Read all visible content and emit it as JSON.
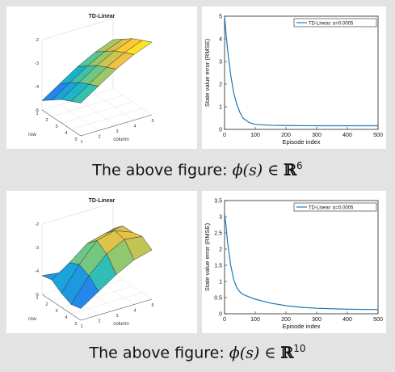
{
  "chart_data": [
    {
      "type": "surface",
      "title": "TD-Linear",
      "xlabel": "column",
      "ylabel": "row",
      "x_ticks": [
        "1",
        "2",
        "3",
        "4",
        "5"
      ],
      "y_ticks": [
        "1",
        "2",
        "3",
        "4",
        "5"
      ],
      "z_ticks": [
        "-2",
        "-3",
        "-4",
        "-5"
      ],
      "zlim": [
        -5,
        -2
      ],
      "z_values": [
        [
          -4.6,
          -4.1,
          -3.6,
          -3.2,
          -2.9
        ],
        [
          -4.3,
          -3.8,
          -3.3,
          -2.9,
          -2.6
        ],
        [
          -4.0,
          -3.5,
          -3.0,
          -2.6,
          -2.3
        ],
        [
          -3.8,
          -3.3,
          -2.8,
          -2.4,
          -2.1
        ],
        [
          -3.6,
          -3.1,
          -2.6,
          -2.2,
          -1.9
        ]
      ]
    },
    {
      "type": "line",
      "xlabel": "Episode index",
      "ylabel": "State value error (RMSE)",
      "xlim": [
        0,
        500
      ],
      "ylim": [
        0,
        5
      ],
      "x_ticks": [
        "0",
        "100",
        "200",
        "300",
        "400",
        "500"
      ],
      "y_ticks": [
        "0",
        "1",
        "2",
        "3",
        "4",
        "5"
      ],
      "series": [
        {
          "name": "TD-Linear: α=0.0005",
          "color": "#1f77b4",
          "x": [
            0,
            5,
            10,
            20,
            30,
            40,
            50,
            60,
            80,
            100,
            150,
            200,
            300,
            400,
            500
          ],
          "y": [
            5.0,
            4.2,
            3.5,
            2.4,
            1.6,
            1.1,
            0.75,
            0.5,
            0.3,
            0.22,
            0.18,
            0.17,
            0.16,
            0.16,
            0.16
          ]
        }
      ]
    },
    {
      "type": "surface",
      "title": "TD-Linear",
      "xlabel": "column",
      "ylabel": "row",
      "x_ticks": [
        "1",
        "2",
        "3",
        "4",
        "5"
      ],
      "y_ticks": [
        "1",
        "2",
        "3",
        "4",
        "5"
      ],
      "z_ticks": [
        "-2",
        "-3",
        "-4",
        "-5"
      ],
      "zlim": [
        -5,
        -2
      ],
      "z_values": [
        [
          -4.2,
          -4.3,
          -3.8,
          -3.4,
          -3.1
        ],
        [
          -4.1,
          -3.6,
          -3.0,
          -2.8,
          -2.7
        ],
        [
          -4.4,
          -3.4,
          -2.6,
          -2.4,
          -2.7
        ],
        [
          -4.6,
          -3.6,
          -2.9,
          -2.5,
          -2.6
        ],
        [
          -4.5,
          -4.0,
          -3.5,
          -3.1,
          -2.9
        ]
      ]
    },
    {
      "type": "line",
      "xlabel": "Episode index",
      "ylabel": "State value error (RMSE)",
      "xlim": [
        0,
        500
      ],
      "ylim": [
        0,
        3.5
      ],
      "x_ticks": [
        "0",
        "100",
        "200",
        "300",
        "400",
        "500"
      ],
      "y_ticks": [
        "0",
        "0.5",
        "1",
        "1.5",
        "2",
        "2.5",
        "3",
        "3.5"
      ],
      "series": [
        {
          "name": "TD-Linear: α=0.0005",
          "color": "#1f77b4",
          "x": [
            0,
            5,
            10,
            20,
            30,
            40,
            50,
            60,
            80,
            100,
            150,
            200,
            250,
            300,
            400,
            500
          ],
          "y": [
            3.1,
            2.7,
            2.2,
            1.5,
            1.05,
            0.8,
            0.68,
            0.6,
            0.52,
            0.45,
            0.33,
            0.25,
            0.2,
            0.17,
            0.14,
            0.13
          ]
        }
      ]
    }
  ],
  "captions": [
    {
      "prefix": "The above figure: ",
      "math": "ϕ(s) ∈ ",
      "field": "ℝ",
      "power": "6"
    },
    {
      "prefix": "The above figure: ",
      "math": "ϕ(s) ∈ ",
      "field": "ℝ",
      "power": "10"
    }
  ]
}
